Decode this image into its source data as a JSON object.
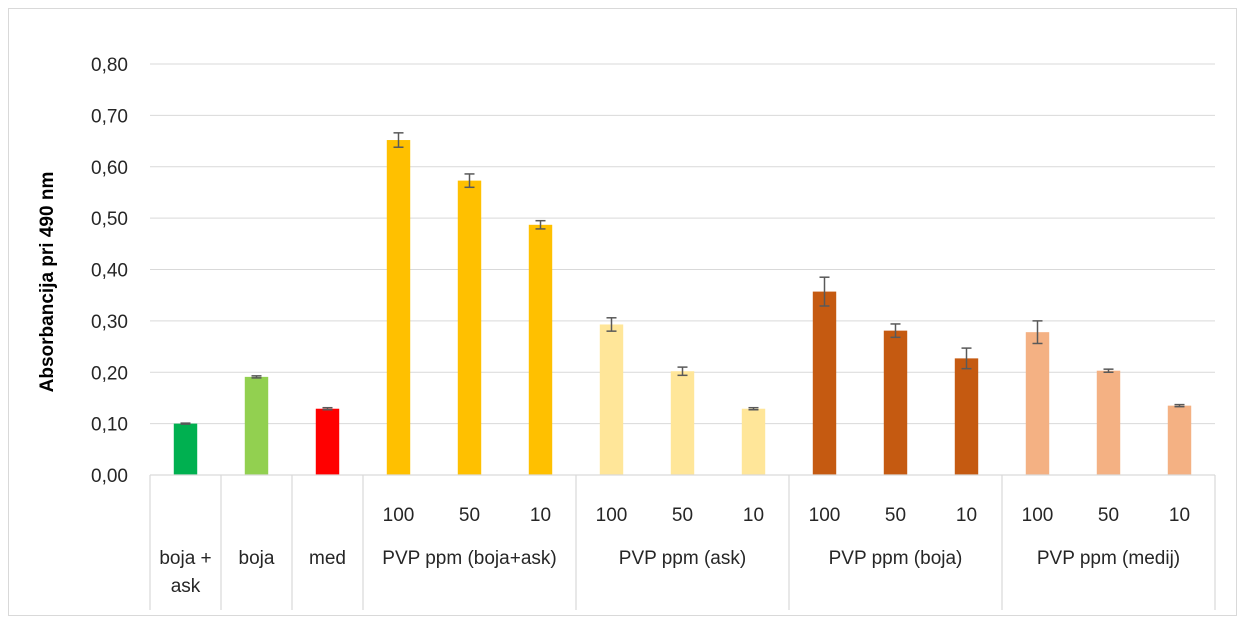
{
  "chart_data": {
    "type": "bar",
    "ylabel": "Absorbancija pri 490 nm",
    "xlabel": "",
    "ylim": [
      0,
      0.8
    ],
    "ytick_step": 0.1,
    "ytick_labels": [
      "0,00",
      "0,10",
      "0,20",
      "0,30",
      "0,40",
      "0,50",
      "0,60",
      "0,70",
      "0,80"
    ],
    "grid": true,
    "legend": "none",
    "bars": [
      {
        "group": "boja +\nask",
        "label": "",
        "value": 0.1,
        "error": 0.001,
        "color": "#00b050"
      },
      {
        "group": "boja",
        "label": "",
        "value": 0.191,
        "error": 0.002,
        "color": "#92d050"
      },
      {
        "group": "med",
        "label": "",
        "value": 0.129,
        "error": 0.002,
        "color": "#ff0000"
      },
      {
        "group": "PVP ppm (boja+ask)",
        "label": "100",
        "value": 0.652,
        "error": 0.014,
        "color": "#ffc000"
      },
      {
        "group": "PVP ppm (boja+ask)",
        "label": "50",
        "value": 0.573,
        "error": 0.013,
        "color": "#ffc000"
      },
      {
        "group": "PVP ppm (boja+ask)",
        "label": "10",
        "value": 0.487,
        "error": 0.008,
        "color": "#ffc000"
      },
      {
        "group": "PVP ppm (ask)",
        "label": "100",
        "value": 0.293,
        "error": 0.013,
        "color": "#ffe699"
      },
      {
        "group": "PVP ppm (ask)",
        "label": "50",
        "value": 0.202,
        "error": 0.008,
        "color": "#ffe699"
      },
      {
        "group": "PVP ppm (ask)",
        "label": "10",
        "value": 0.129,
        "error": 0.002,
        "color": "#ffe699"
      },
      {
        "group": "PVP ppm (boja)",
        "label": "100",
        "value": 0.357,
        "error": 0.028,
        "color": "#c55a11"
      },
      {
        "group": "PVP ppm (boja)",
        "label": "50",
        "value": 0.281,
        "error": 0.013,
        "color": "#c55a11"
      },
      {
        "group": "PVP ppm (boja)",
        "label": "10",
        "value": 0.227,
        "error": 0.02,
        "color": "#c55a11"
      },
      {
        "group": "PVP ppm (medij)",
        "label": "100",
        "value": 0.278,
        "error": 0.022,
        "color": "#f4b183"
      },
      {
        "group": "PVP ppm (medij)",
        "label": "50",
        "value": 0.203,
        "error": 0.003,
        "color": "#f4b183"
      },
      {
        "group": "PVP ppm (medij)",
        "label": "10",
        "value": 0.135,
        "error": 0.002,
        "color": "#f4b183"
      }
    ],
    "groups": [
      "boja +\nask",
      "boja",
      "med",
      "PVP ppm (boja+ask)",
      "PVP ppm (ask)",
      "PVP ppm (boja)",
      "PVP ppm (medij)"
    ]
  }
}
